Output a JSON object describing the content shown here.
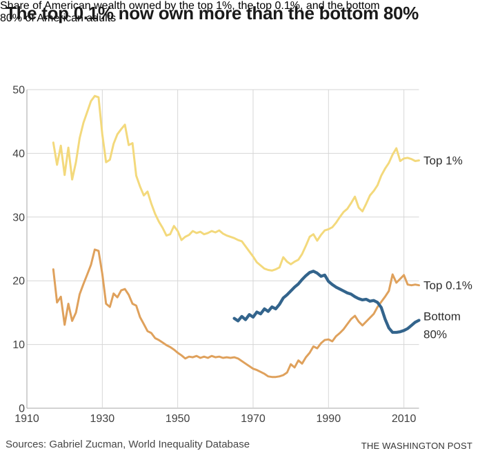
{
  "footer": {
    "sources": "Sources: Gabriel Zucman, World Inequality Database",
    "credit": "THE WASHINGTON POST"
  },
  "colors": {
    "top_1_line": "#F3D97C",
    "top_01_line": "#DFA15C",
    "bottom_80_line": "#33648C",
    "gridline": "#D6D6D6",
    "axis": "#A5A5A5",
    "title_text": "#1A1A1A",
    "tick_text": "#404040"
  },
  "chart_data": {
    "type": "line",
    "title": "The top 0.1% now own more than the bottom 80%",
    "subtitle_lines": [
      "Share of American wealth owned by the top 1%, the top 0.1%, and the bottom",
      "80% of American adults"
    ],
    "grid": true,
    "legend_position": "right-of-line-ends",
    "xlim": [
      1910,
      2014
    ],
    "ylim": [
      0,
      50
    ],
    "x_axis": {
      "ticks": [
        1910,
        1930,
        1950,
        1970,
        1990,
        2010
      ]
    },
    "y_axis": {
      "ticks": [
        0,
        10,
        20,
        30,
        40,
        50
      ]
    },
    "series": [
      {
        "name": "Top 1%",
        "label_lines": [
          "Top 1%"
        ],
        "color": "#F3D97C",
        "stroke_width": 3,
        "start_year": 1917,
        "values": [
          41.7,
          38.2,
          41.2,
          36.6,
          40.9,
          35.9,
          38.6,
          42.4,
          44.8,
          46.5,
          48.2,
          49.0,
          48.8,
          43.0,
          38.6,
          39.0,
          41.5,
          43.0,
          43.8,
          44.5,
          41.3,
          41.6,
          36.5,
          34.8,
          33.4,
          34.0,
          32.1,
          30.5,
          29.3,
          28.3,
          27.1,
          27.3,
          28.6,
          27.8,
          26.4,
          26.9,
          27.2,
          27.8,
          27.5,
          27.7,
          27.3,
          27.5,
          27.8,
          27.6,
          27.9,
          27.4,
          27.1,
          26.9,
          26.7,
          26.4,
          26.2,
          25.4,
          24.6,
          23.8,
          22.9,
          22.4,
          21.9,
          21.7,
          21.6,
          21.8,
          22.1,
          23.7,
          23.0,
          22.6,
          23.0,
          23.3,
          24.2,
          25.5,
          26.9,
          27.3,
          26.3,
          27.2,
          27.9,
          28.1,
          28.4,
          29.1,
          30.0,
          30.8,
          31.3,
          32.2,
          33.2,
          31.5,
          30.9,
          32.1,
          33.4,
          34.1,
          35.0,
          36.5,
          37.6,
          38.5,
          39.8,
          40.8,
          38.8,
          39.2,
          39.3,
          39.1,
          38.8,
          38.9
        ]
      },
      {
        "name": "Top 0.1%",
        "label_lines": [
          "Top 0.1%"
        ],
        "color": "#DFA15C",
        "stroke_width": 3,
        "start_year": 1917,
        "values": [
          21.8,
          16.6,
          17.5,
          13.1,
          16.4,
          13.7,
          15.0,
          17.9,
          19.5,
          21.0,
          22.5,
          24.9,
          24.7,
          21.1,
          16.4,
          15.9,
          18.0,
          17.4,
          18.5,
          18.7,
          17.8,
          16.4,
          16.1,
          14.3,
          13.2,
          12.1,
          11.8,
          11.0,
          10.7,
          10.3,
          9.9,
          9.6,
          9.2,
          8.7,
          8.3,
          7.8,
          8.1,
          8.0,
          8.2,
          7.9,
          8.1,
          7.9,
          8.2,
          8.0,
          8.1,
          7.9,
          8.0,
          7.9,
          8.0,
          7.8,
          7.4,
          7.0,
          6.6,
          6.2,
          6.0,
          5.7,
          5.4,
          5.0,
          4.9,
          4.9,
          5.0,
          5.2,
          5.6,
          6.9,
          6.4,
          7.5,
          7.0,
          8.0,
          8.7,
          9.7,
          9.4,
          10.2,
          10.7,
          10.8,
          10.5,
          11.3,
          11.8,
          12.4,
          13.2,
          14.0,
          14.5,
          13.6,
          13.0,
          13.6,
          14.2,
          14.8,
          15.9,
          16.7,
          17.5,
          18.4,
          21.0,
          19.7,
          20.3,
          20.9,
          19.4,
          19.3,
          19.4,
          19.3
        ]
      },
      {
        "name": "Bottom 80%",
        "label_lines": [
          "Bottom",
          "80%"
        ],
        "color": "#33648C",
        "stroke_width": 4.3,
        "start_year": 1965,
        "values": [
          14.1,
          13.7,
          14.4,
          13.9,
          14.7,
          14.3,
          15.1,
          14.8,
          15.6,
          15.2,
          15.9,
          15.6,
          16.3,
          17.3,
          17.8,
          18.4,
          19.0,
          19.5,
          20.2,
          20.8,
          21.3,
          21.5,
          21.2,
          20.7,
          20.9,
          19.9,
          19.4,
          19.0,
          18.7,
          18.4,
          18.1,
          17.9,
          17.5,
          17.2,
          17.0,
          17.1,
          16.8,
          16.9,
          16.6,
          15.8,
          14.0,
          12.6,
          11.9,
          11.9,
          12.0,
          12.2,
          12.5,
          13.0,
          13.5,
          13.8
        ]
      }
    ]
  }
}
